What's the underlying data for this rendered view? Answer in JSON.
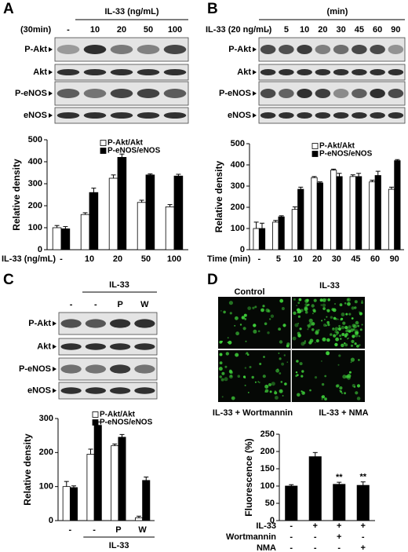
{
  "panel_a": {
    "letter": "A",
    "header": "IL-33 (ng/mL)",
    "condition": "(30min)",
    "lanes": [
      "-",
      "10",
      "20",
      "50",
      "100"
    ],
    "blots": [
      "P-Akt",
      "Akt",
      "P-eNOS",
      "eNOS"
    ]
  },
  "panel_b": {
    "letter": "B",
    "header": "(min)",
    "condition": "IL-33 (20 ng/mL)",
    "lanes": [
      "-",
      "5",
      "10",
      "20",
      "30",
      "45",
      "60",
      "90"
    ],
    "blots": [
      "P-Akt",
      "Akt",
      "P-eNOS",
      "eNOS"
    ]
  },
  "panel_c": {
    "letter": "C",
    "header": "IL-33",
    "lanes": [
      "-",
      "-",
      "P",
      "W"
    ],
    "blots": [
      "P-Akt",
      "Akt",
      "P-eNOS",
      "eNOS"
    ]
  },
  "panel_d": {
    "letter": "D",
    "image_labels": [
      "Control",
      "IL-33",
      "IL-33 + Wortmannin",
      "IL-33 + NMA"
    ]
  },
  "chart_data": [
    {
      "type": "bar",
      "ylabel": "Relative density",
      "xlabel": "IL-33 (ng/mL)",
      "categories": [
        "-",
        "10",
        "20",
        "50",
        "100"
      ],
      "series": [
        {
          "name": "P-Akt/Akt",
          "color": "#ffffff",
          "values": [
            100,
            160,
            325,
            215,
            195
          ],
          "errors": [
            10,
            8,
            15,
            10,
            10
          ]
        },
        {
          "name": "P-eNOS/eNOS",
          "color": "#000000",
          "values": [
            95,
            260,
            420,
            340,
            335
          ],
          "errors": [
            10,
            20,
            15,
            5,
            8
          ]
        }
      ],
      "ylim": [
        0,
        500
      ],
      "yticks": [
        0,
        100,
        200,
        300,
        400,
        500
      ]
    },
    {
      "type": "bar",
      "ylabel": "Relative density",
      "xlabel": "Time (min)",
      "categories": [
        "-",
        "5",
        "10",
        "20",
        "30",
        "45",
        "60",
        "90"
      ],
      "series": [
        {
          "name": "P-Akt/Akt",
          "color": "#ffffff",
          "values": [
            100,
            130,
            190,
            340,
            375,
            345,
            320,
            285
          ],
          "errors": [
            30,
            8,
            12,
            5,
            5,
            8,
            8,
            10
          ]
        },
        {
          "name": "P-eNOS/eNOS",
          "color": "#000000",
          "values": [
            100,
            155,
            285,
            315,
            345,
            345,
            350,
            420
          ],
          "errors": [
            25,
            5,
            10,
            5,
            15,
            15,
            20,
            5
          ]
        }
      ],
      "ylim": [
        0,
        500
      ],
      "yticks": [
        0,
        100,
        200,
        300,
        400,
        500
      ]
    },
    {
      "type": "bar",
      "ylabel": "Relative density",
      "xlabel": "IL-33",
      "categories": [
        "-",
        "-",
        "P",
        "W"
      ],
      "series": [
        {
          "name": "P-Akt/Akt",
          "color": "#ffffff",
          "values": [
            100,
            195,
            220,
            8
          ],
          "errors": [
            15,
            15,
            5,
            5
          ]
        },
        {
          "name": "P-eNOS/eNOS",
          "color": "#000000",
          "values": [
            97,
            280,
            245,
            118
          ],
          "errors": [
            5,
            10,
            8,
            10
          ]
        }
      ],
      "ylim": [
        0,
        300
      ],
      "yticks": [
        0,
        100,
        200,
        300
      ]
    },
    {
      "type": "bar",
      "ylabel": "Fluorescence (%)",
      "color": "#000000",
      "values": [
        100,
        185,
        105,
        102
      ],
      "errors": [
        4,
        12,
        6,
        10
      ],
      "significance": [
        null,
        null,
        "**",
        "**"
      ],
      "treatments": [
        {
          "name": "IL-33",
          "signs": [
            "-",
            "+",
            "+",
            "+"
          ]
        },
        {
          "name": "Wortmannin",
          "signs": [
            "-",
            "-",
            "+",
            "-"
          ]
        },
        {
          "name": "NMA",
          "signs": [
            "-",
            "-",
            "-",
            "+"
          ]
        }
      ],
      "ylim": [
        0,
        250
      ],
      "yticks": [
        0,
        50,
        100,
        150,
        200,
        250
      ]
    }
  ]
}
